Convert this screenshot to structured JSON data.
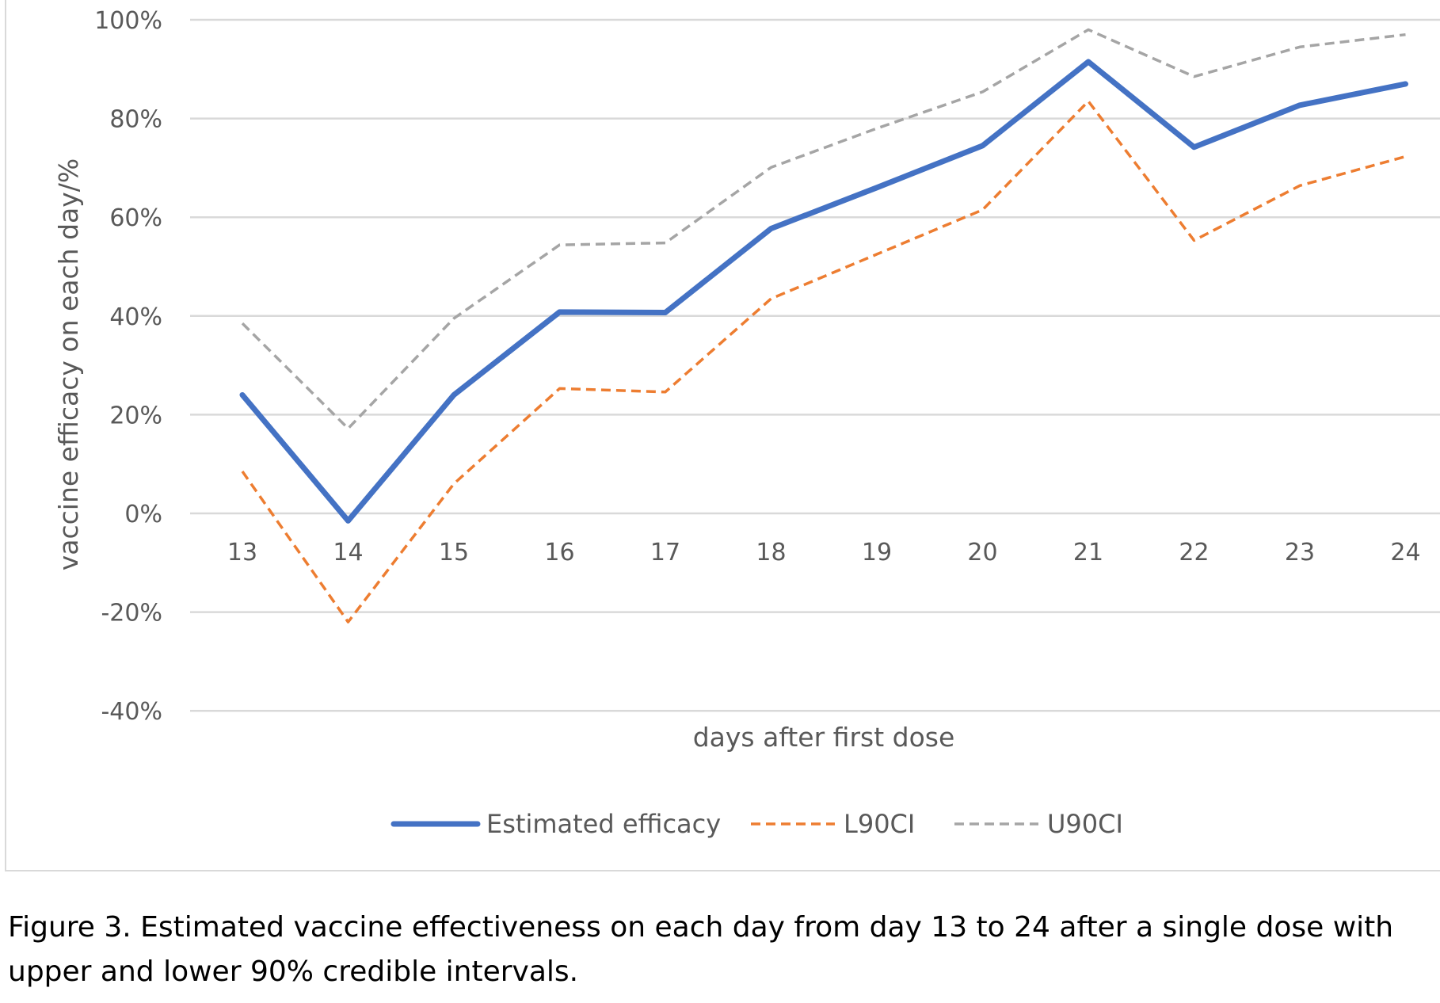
{
  "chart_data": {
    "type": "line",
    "xlabel": "days after first dose",
    "ylabel": "vaccine efficacy on each day/%",
    "x": [
      13,
      14,
      15,
      16,
      17,
      18,
      19,
      20,
      21,
      22,
      23,
      24
    ],
    "ylim": [
      -40,
      100
    ],
    "yticks": [
      100,
      80,
      60,
      40,
      20,
      0,
      -20,
      -40
    ],
    "ytick_labels": [
      "100%",
      "80%",
      "60%",
      "40%",
      "20%",
      "0%",
      "-20%",
      "-40%"
    ],
    "grid": true,
    "legend_position": "bottom",
    "series": [
      {
        "name": "Estimated efficacy",
        "color": "#4472c4",
        "style": "solid",
        "values": [
          24,
          -1.5,
          24,
          40.8,
          40.7,
          57.7,
          66,
          74.5,
          91.5,
          74.2,
          82.7,
          87
        ]
      },
      {
        "name": "L90CI",
        "color": "#ed7d31",
        "style": "dashed",
        "values": [
          8.5,
          -22,
          6,
          25.3,
          24.6,
          43.5,
          52.5,
          61.5,
          83.5,
          55.3,
          66.4,
          72.3
        ]
      },
      {
        "name": "U90CI",
        "color": "#a5a5a5",
        "style": "dashed",
        "values": [
          38.5,
          17.2,
          39.5,
          54.4,
          54.8,
          70.1,
          78,
          85.4,
          98,
          88.5,
          94.5,
          97
        ]
      }
    ]
  },
  "caption": {
    "line1": "Figure 3. Estimated vaccine effectiveness on each day from day 13 to 24 after a single dose with",
    "line2": "upper and lower 90% credible intervals."
  }
}
